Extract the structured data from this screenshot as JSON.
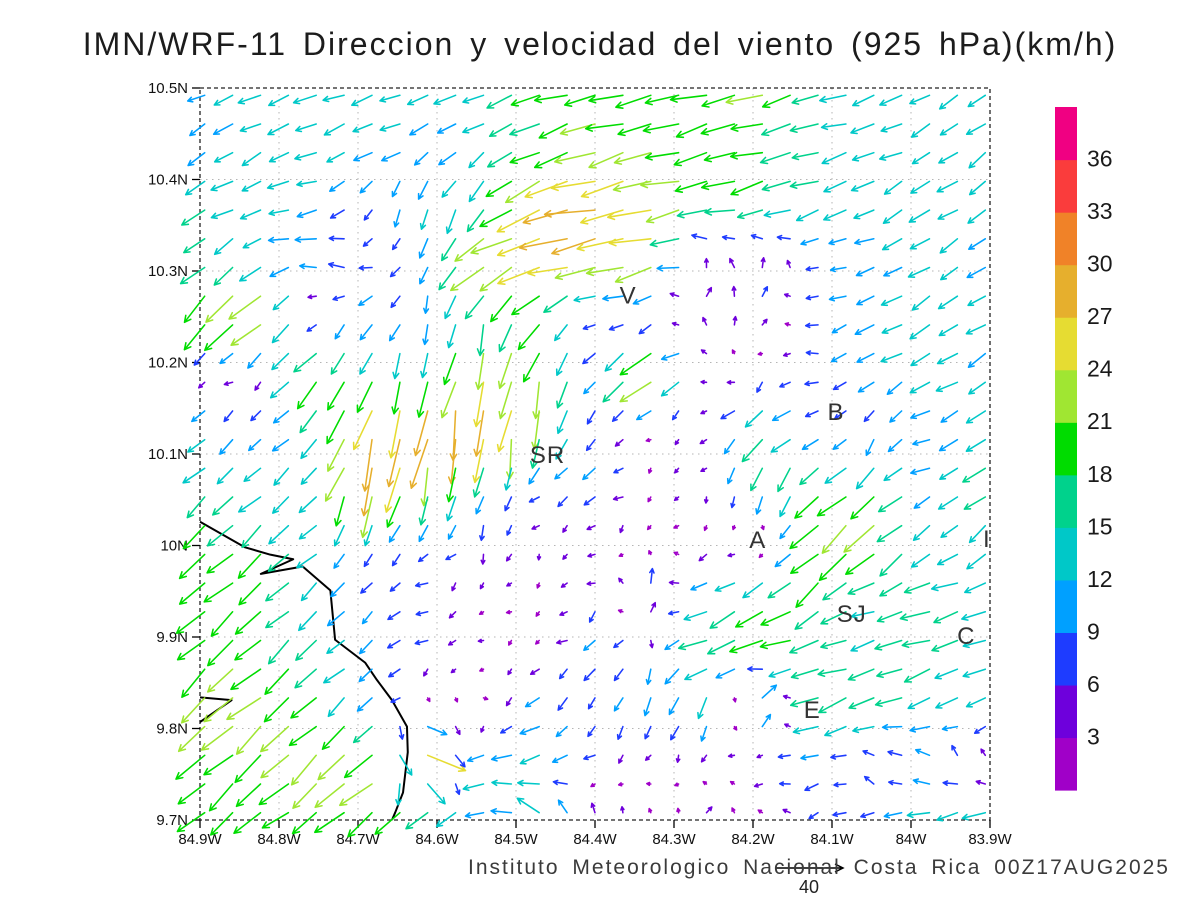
{
  "chart_data": {
    "type": "scatter",
    "subtype": "wind-vector-field-quiver",
    "title": "IMN/WRF-11 Direccion y velocidad del viento (925 hPa)(km/h)",
    "caption": "Instituto Meteorologico Nacional Costa Rica 00Z17AUG2025",
    "xlabel": "",
    "ylabel": "",
    "grid": "dotted",
    "xlim_west_deg": [
      84.9,
      83.9
    ],
    "ylim_north_deg": [
      9.7,
      10.5
    ],
    "x_ticks": [
      {
        "label": "84.9W",
        "lon": 84.9
      },
      {
        "label": "84.8W",
        "lon": 84.8
      },
      {
        "label": "84.7W",
        "lon": 84.7
      },
      {
        "label": "84.6W",
        "lon": 84.6
      },
      {
        "label": "84.5W",
        "lon": 84.5
      },
      {
        "label": "84.4W",
        "lon": 84.4
      },
      {
        "label": "84.3W",
        "lon": 84.3
      },
      {
        "label": "84.2W",
        "lon": 84.2
      },
      {
        "label": "84.1W",
        "lon": 84.1
      },
      {
        "label": "84W",
        "lon": 84.0
      },
      {
        "label": "83.9W",
        "lon": 83.9
      }
    ],
    "y_ticks": [
      {
        "label": "10.5N",
        "lat": 10.5
      },
      {
        "label": "10.4N",
        "lat": 10.4
      },
      {
        "label": "10.3N",
        "lat": 10.3
      },
      {
        "label": "10.2N",
        "lat": 10.2
      },
      {
        "label": "10.1N",
        "lat": 10.1
      },
      {
        "label": "10N",
        "lat": 10.0
      },
      {
        "label": "9.9N",
        "lat": 9.9
      },
      {
        "label": "9.8N",
        "lat": 9.8
      },
      {
        "label": "9.7N",
        "lat": 9.7
      }
    ],
    "colorbar": {
      "levels_kmh": [
        3,
        6,
        9,
        12,
        15,
        18,
        21,
        24,
        27,
        30,
        33,
        36
      ],
      "band_colors_low_to_high": [
        "#A000C8",
        "#6E00DC",
        "#1E3CFF",
        "#00A0FF",
        "#00C8C8",
        "#00D28C",
        "#00DC00",
        "#A0E632",
        "#E6DC32",
        "#E6AF2D",
        "#F08228",
        "#FA3C3C",
        "#F00082"
      ]
    },
    "reference_vector": {
      "value_kmh": 40,
      "label": "40"
    },
    "station_labels": [
      {
        "text": "V",
        "lon": 84.358,
        "lat": 10.273
      },
      {
        "text": "SR",
        "lon": 84.46,
        "lat": 10.099
      },
      {
        "text": "B",
        "lon": 84.095,
        "lat": 10.146
      },
      {
        "text": "A",
        "lon": 84.194,
        "lat": 10.006
      },
      {
        "text": "SJ",
        "lon": 84.075,
        "lat": 9.925
      },
      {
        "text": "C",
        "lon": 83.93,
        "lat": 9.901
      },
      {
        "text": "E",
        "lon": 84.125,
        "lat": 9.82
      },
      {
        "text": "I",
        "lon": 83.904,
        "lat": 10.007
      }
    ],
    "coastlines_lonlat_west_north": [
      [
        [
          84.9,
          10.026
        ],
        [
          84.843,
          9.998
        ],
        [
          84.811,
          9.99
        ],
        [
          84.782,
          9.985
        ],
        [
          84.823,
          9.969
        ],
        [
          84.77,
          9.977
        ],
        [
          84.735,
          9.951
        ],
        [
          84.729,
          9.897
        ],
        [
          84.691,
          9.872
        ],
        [
          84.676,
          9.853
        ],
        [
          84.657,
          9.831
        ],
        [
          84.638,
          9.802
        ],
        [
          84.637,
          9.774
        ],
        [
          84.643,
          9.73
        ],
        [
          84.653,
          9.708
        ],
        [
          84.657,
          9.7
        ]
      ],
      [
        [
          84.9,
          9.834
        ],
        [
          84.86,
          9.831
        ],
        [
          84.9,
          9.807
        ]
      ]
    ],
    "wind_grid": {
      "note": "u=eastward km/h, v=northward km/h; coarse field read visually from plotted vectors, rendered by bilinear interpolation",
      "lon_west_deg": [
        84.9,
        84.829,
        84.757,
        84.686,
        84.614,
        84.543,
        84.471,
        84.4,
        84.329,
        84.257,
        84.186,
        84.114,
        84.043,
        83.971,
        83.9
      ],
      "lat_north_deg": [
        10.5,
        10.438,
        10.377,
        10.315,
        10.254,
        10.192,
        10.131,
        10.069,
        10.008,
        9.946,
        9.885,
        9.823,
        9.762,
        9.7
      ],
      "uv": [
        [
          [
            -10,
            -5
          ],
          [
            -12,
            -5
          ],
          [
            -13,
            -4
          ],
          [
            -12,
            -5
          ],
          [
            -13,
            -3
          ],
          [
            -12,
            -5
          ],
          [
            -17,
            -6
          ],
          [
            -19,
            -5
          ],
          [
            -20,
            -4
          ],
          [
            -20,
            -5
          ],
          [
            -21,
            -5
          ],
          [
            -15,
            -4
          ],
          [
            -13,
            -5
          ],
          [
            -11,
            -7
          ],
          [
            -10,
            -8
          ]
        ],
        [
          [
            -9,
            -6
          ],
          [
            -11,
            -6
          ],
          [
            -12,
            -5
          ],
          [
            -12,
            -4
          ],
          [
            -9,
            -6
          ],
          [
            -10,
            -7
          ],
          [
            -16,
            -8
          ],
          [
            -21,
            -6
          ],
          [
            -20,
            -5
          ],
          [
            -19,
            -5
          ],
          [
            -18,
            -5
          ],
          [
            -15,
            -4
          ],
          [
            -13,
            -4
          ],
          [
            -11,
            -6
          ],
          [
            -10,
            -7
          ]
        ],
        [
          [
            -13,
            -9
          ],
          [
            -12,
            -4
          ],
          [
            -12,
            -3
          ],
          [
            -3,
            -8
          ],
          [
            -3,
            -12
          ],
          [
            -8,
            -13
          ],
          [
            -24,
            -10
          ],
          [
            -28,
            -7
          ],
          [
            -24,
            -6
          ],
          [
            -20,
            -5
          ],
          [
            -18,
            -5
          ],
          [
            -15,
            -5
          ],
          [
            -12,
            -7
          ],
          [
            -11,
            -7
          ],
          [
            -10,
            -7
          ]
        ],
        [
          [
            -12,
            -10
          ],
          [
            -10,
            -7
          ],
          [
            -12,
            2
          ],
          [
            -8,
            3
          ],
          [
            -3,
            -11
          ],
          [
            -20,
            -14
          ],
          [
            -26,
            -8
          ],
          [
            -27,
            -5
          ],
          [
            -26,
            -6
          ],
          [
            -2,
            5
          ],
          [
            0,
            6
          ],
          [
            -8,
            -1
          ],
          [
            -10,
            -3
          ],
          [
            -11,
            -7
          ],
          [
            -10,
            -6
          ]
        ],
        [
          [
            -16,
            -16
          ],
          [
            -20,
            -19
          ],
          [
            -1,
            -2
          ],
          [
            -8,
            -8
          ],
          [
            -2,
            -9
          ],
          [
            -4,
            -15
          ],
          [
            -12,
            -14
          ],
          [
            -7,
            -1
          ],
          [
            -3,
            -2
          ],
          [
            1,
            6
          ],
          [
            2,
            6
          ],
          [
            -7,
            -2
          ],
          [
            -11,
            -5
          ],
          [
            -12,
            -7
          ],
          [
            -10,
            -7
          ]
        ],
        [
          [
            -2,
            -2
          ],
          [
            -3,
            -2
          ],
          [
            -16,
            -16
          ],
          [
            -6,
            -14
          ],
          [
            -4,
            -16
          ],
          [
            -6,
            -24
          ],
          [
            -5,
            -21
          ],
          [
            -6,
            -8
          ],
          [
            -23,
            -16
          ],
          [
            -3,
            2
          ],
          [
            -2,
            -2
          ],
          [
            -7,
            -2
          ],
          [
            -10,
            -6
          ],
          [
            -12,
            -7
          ],
          [
            -10,
            -6
          ]
        ],
        [
          [
            -9,
            -8
          ],
          [
            -6,
            -6
          ],
          [
            -9,
            -9
          ],
          [
            -8,
            -28
          ],
          [
            -6,
            -32
          ],
          [
            -4,
            -30
          ],
          [
            -4,
            -21
          ],
          [
            -5,
            -6
          ],
          [
            -2,
            -2
          ],
          [
            -3,
            -3
          ],
          [
            -14,
            -12
          ],
          [
            -8,
            -2
          ],
          [
            -3,
            -8
          ],
          [
            -10,
            -3
          ],
          [
            -11,
            -7
          ]
        ],
        [
          [
            -12,
            -11
          ],
          [
            -10,
            -9
          ],
          [
            -9,
            -8
          ],
          [
            -7,
            -29
          ],
          [
            -6,
            -20
          ],
          [
            -3,
            -12
          ],
          [
            -6,
            -5
          ],
          [
            -8,
            -6
          ],
          [
            -2,
            -2
          ],
          [
            -2,
            -3
          ],
          [
            -4,
            -15
          ],
          [
            -13,
            -12
          ],
          [
            -13,
            -11
          ],
          [
            -10,
            -4
          ],
          [
            -13,
            -10
          ]
        ],
        [
          [
            -14,
            -13
          ],
          [
            -14,
            -12
          ],
          [
            -10,
            -9
          ],
          [
            -3,
            -8
          ],
          [
            -5,
            -5
          ],
          [
            -2,
            -7
          ],
          [
            -2,
            -3
          ],
          [
            -3,
            -2
          ],
          [
            -2,
            -2
          ],
          [
            -2,
            -2
          ],
          [
            3,
            3
          ],
          [
            -16,
            -15
          ],
          [
            -18,
            -16
          ],
          [
            -9,
            -8
          ],
          [
            -10,
            -8
          ]
        ],
        [
          [
            -15,
            -13
          ],
          [
            -14,
            -13
          ],
          [
            -11,
            -10
          ],
          [
            -6,
            -6
          ],
          [
            -7,
            -2
          ],
          [
            -2,
            -2
          ],
          [
            -2,
            -2
          ],
          [
            -4,
            -3
          ],
          [
            1,
            12
          ],
          [
            -12,
            -5
          ],
          [
            -15,
            -10
          ],
          [
            -14,
            -11
          ],
          [
            -13,
            -5
          ],
          [
            -16,
            -5
          ],
          [
            -13,
            -4
          ]
        ],
        [
          [
            -15,
            -14
          ],
          [
            -16,
            -13
          ],
          [
            -12,
            -11
          ],
          [
            -8,
            -7
          ],
          [
            -7,
            -3
          ],
          [
            -3,
            -1
          ],
          [
            -2,
            -2
          ],
          [
            -8,
            -6
          ],
          [
            -2,
            -8
          ],
          [
            -16,
            -6
          ],
          [
            -19,
            -6
          ],
          [
            -17,
            -5
          ],
          [
            -14,
            -4
          ],
          [
            -16,
            -5
          ],
          [
            -13,
            -4
          ]
        ],
        [
          [
            -16,
            -14
          ],
          [
            -17,
            -15
          ],
          [
            -14,
            -13
          ],
          [
            -9,
            -8
          ],
          [
            2,
            -2
          ],
          [
            3,
            -2
          ],
          [
            -9,
            -7
          ],
          [
            -3,
            -7
          ],
          [
            -4,
            -10
          ],
          [
            -4,
            -12
          ],
          [
            13,
            12
          ],
          [
            -17,
            -6
          ],
          [
            -15,
            -6
          ],
          [
            -13,
            -5
          ],
          [
            -10,
            -8
          ]
        ],
        [
          [
            -16,
            -13
          ],
          [
            -15,
            -14
          ],
          [
            -17,
            -15
          ],
          [
            -18,
            -16
          ],
          [
            28,
            -10
          ],
          [
            -12,
            -3
          ],
          [
            -13,
            -3
          ],
          [
            -5,
            -4
          ],
          [
            -2,
            -2
          ],
          [
            -3,
            -2
          ],
          [
            -6,
            -2
          ],
          [
            -9,
            -3
          ],
          [
            -5,
            4
          ],
          [
            -8,
            5
          ],
          [
            1,
            6
          ]
        ],
        [
          [
            -14,
            -12
          ],
          [
            -15,
            -12
          ],
          [
            -14,
            -11
          ],
          [
            -16,
            -12
          ],
          [
            -18,
            -12
          ],
          [
            -11,
            -3
          ],
          [
            -12,
            10
          ],
          [
            1,
            7
          ],
          [
            -2,
            2
          ],
          [
            3,
            5
          ],
          [
            -2,
            2
          ],
          [
            -6,
            -2
          ],
          [
            -9,
            -2
          ],
          [
            -13,
            -4
          ],
          [
            -15,
            -5
          ]
        ]
      ]
    }
  }
}
